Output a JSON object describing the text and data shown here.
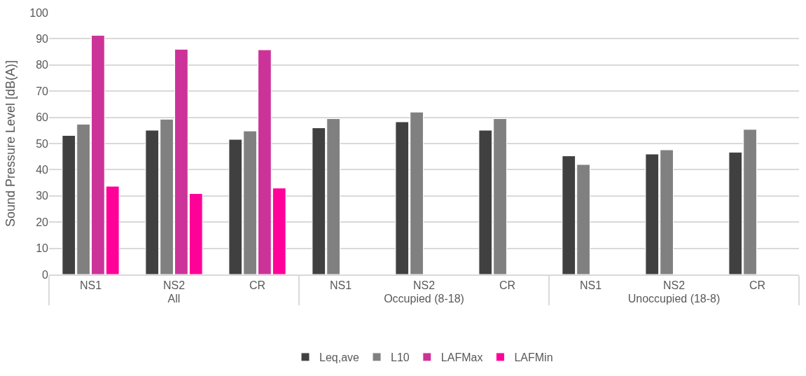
{
  "chart_data": {
    "type": "bar",
    "ylabel": "Sound Pressure Level [dB(A)]",
    "categories": [
      "NS1",
      "NS2",
      "CR",
      "NS1",
      "NS2",
      "CR",
      "NS1",
      "NS2",
      "CR"
    ],
    "annotations": [
      "All",
      "Occupied (8-18)",
      "Unoccupied (18-8)"
    ],
    "series": [
      {
        "name": "Leq,ave",
        "color": "#404040",
        "values": [
          53.1,
          55.1,
          51.6,
          56.0,
          58.3,
          55.1,
          45.3,
          46.0,
          46.7
        ]
      },
      {
        "name": "L10",
        "color": "#808080",
        "values": [
          57.4,
          59.3,
          54.8,
          59.5,
          62.0,
          59.5,
          42.0,
          47.6,
          55.4
        ]
      },
      {
        "name": "LAFMax",
        "color": "#cc3399",
        "values": [
          91.3,
          86.0,
          85.8,
          null,
          null,
          null,
          null,
          null,
          null
        ]
      },
      {
        "name": "LAFMin",
        "color": "#ff0099",
        "values": [
          33.7,
          30.9,
          33.0,
          null,
          null,
          null,
          null,
          null,
          null
        ]
      }
    ],
    "ylim": [
      0,
      100
    ],
    "yticks": [
      0,
      10,
      20,
      30,
      40,
      50,
      60,
      70,
      80,
      90,
      100
    ],
    "grid": "y",
    "legend": "bottom"
  }
}
